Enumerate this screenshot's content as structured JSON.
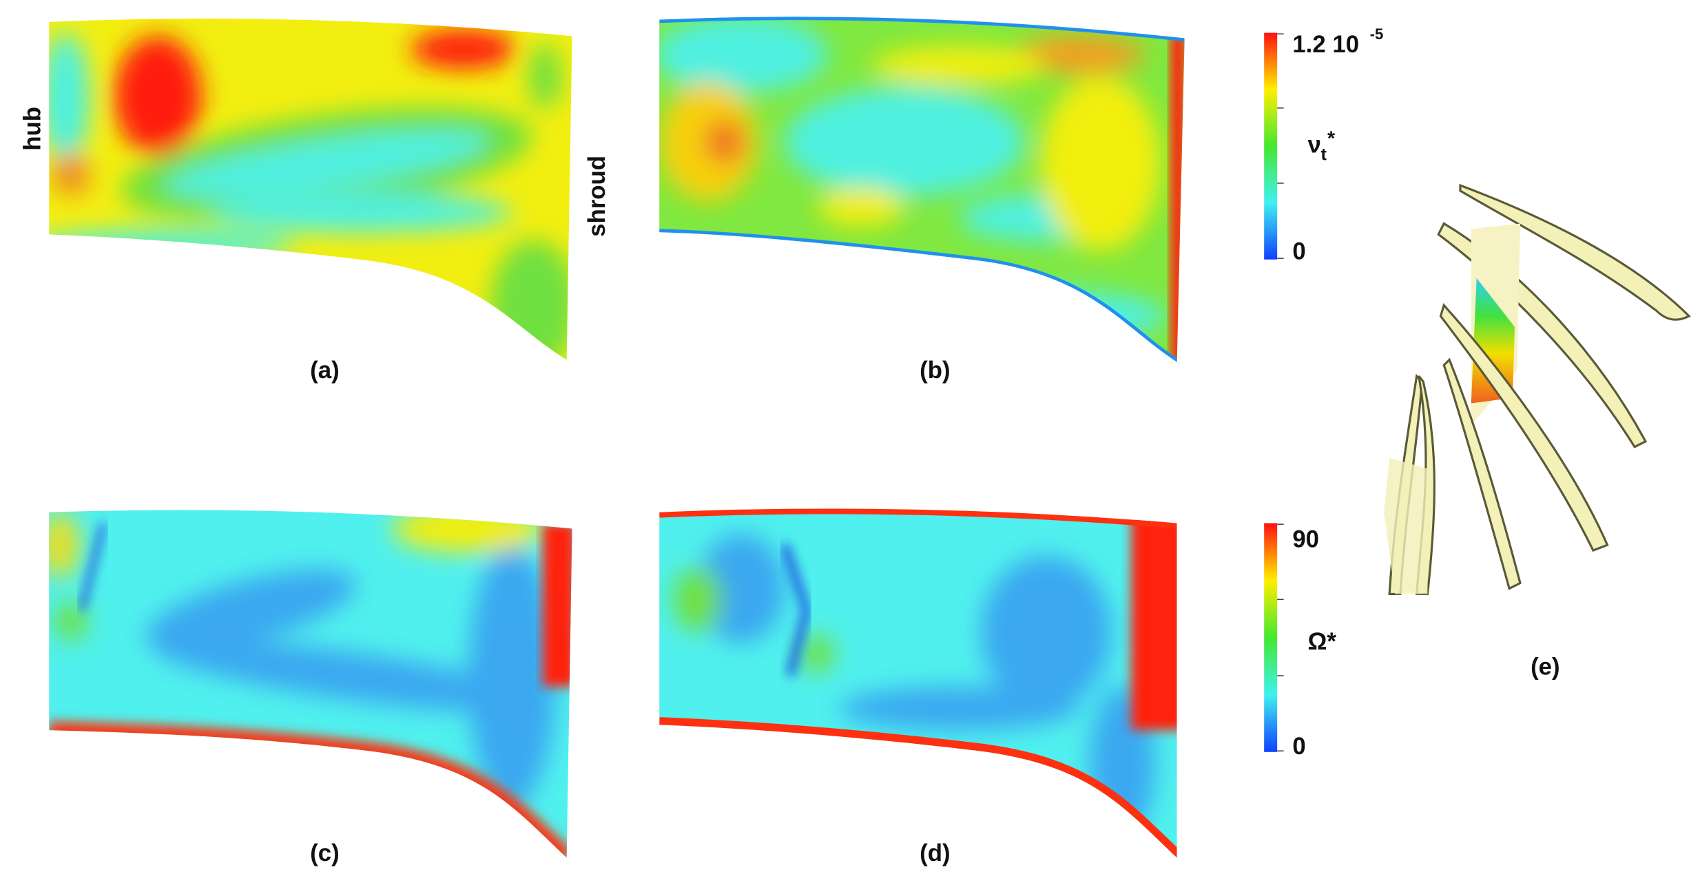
{
  "panels": [
    {
      "label": "(a)"
    },
    {
      "label": "(b)"
    },
    {
      "label": "(c)"
    },
    {
      "label": "(d)"
    },
    {
      "label": "(e)"
    }
  ],
  "side_labels": [
    "hub",
    "shroud"
  ],
  "colorbars": [
    {
      "symbol": "ν",
      "subscript": "t",
      "superscript": "*",
      "max_label": "1.2 10",
      "max_exponent": "-5",
      "min_label": "0"
    },
    {
      "symbol": "Ω*",
      "max_label": "90",
      "min_label": "0"
    }
  ]
}
